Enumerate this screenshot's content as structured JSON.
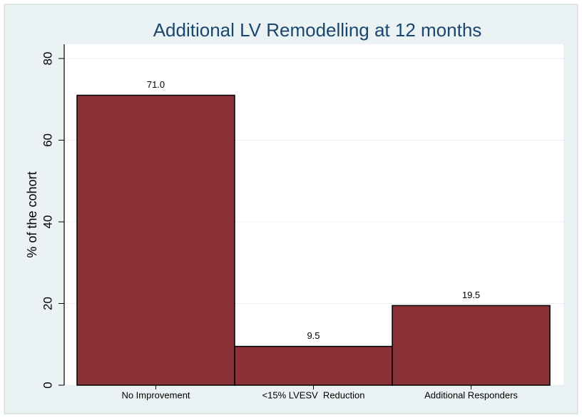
{
  "chart_data": {
    "type": "bar",
    "title": "Additional LV Remodelling at 12 months",
    "y_label": "% of the cohort",
    "categories": [
      "No Improvement",
      "<15% LVESV  Reduction",
      "Additional Responders"
    ],
    "values": [
      71.0,
      9.5,
      19.5
    ],
    "value_labels": [
      "71.0",
      "9.5",
      "19.5"
    ],
    "color": "#8b3239",
    "ylim": [
      0,
      83.5
    ],
    "yticks": [
      0,
      20,
      40,
      60,
      80
    ],
    "grid": true
  }
}
